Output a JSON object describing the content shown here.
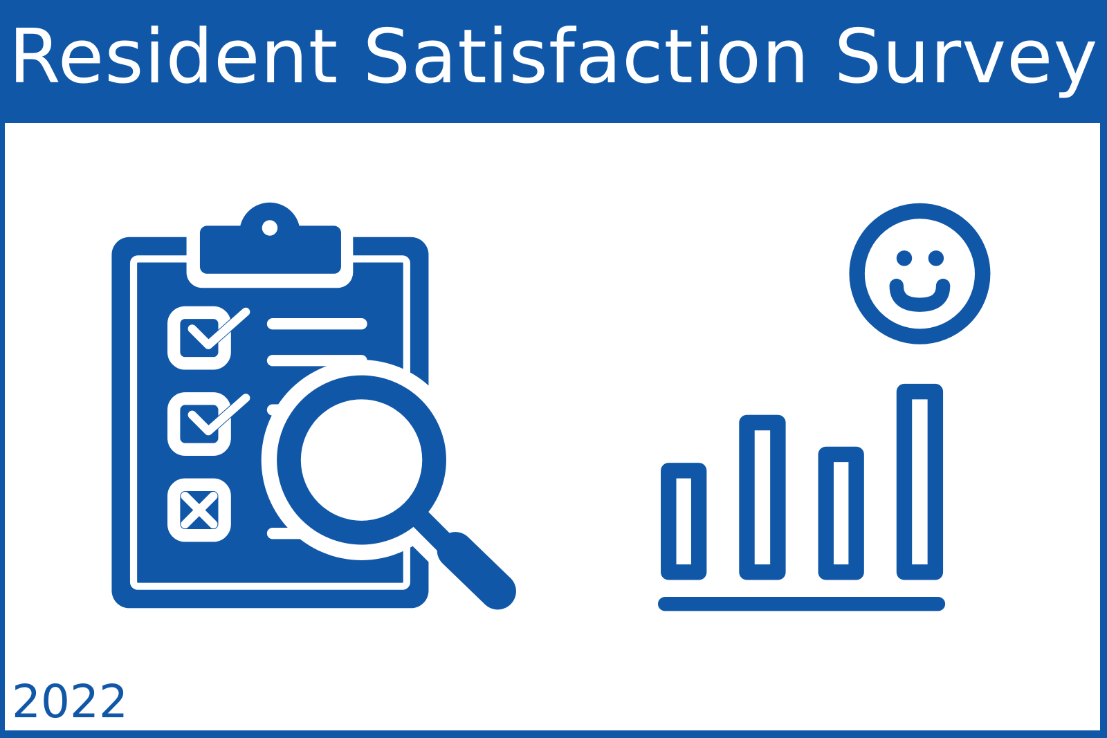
{
  "title": "Resident Satisfaction Survey",
  "year": "2022",
  "colors": {
    "brand": "#1157a8",
    "background": "#ffffff"
  },
  "icons": [
    "clipboard-checklist-icon",
    "magnifying-glass-icon",
    "smiley-face-icon",
    "bar-chart-icon"
  ]
}
